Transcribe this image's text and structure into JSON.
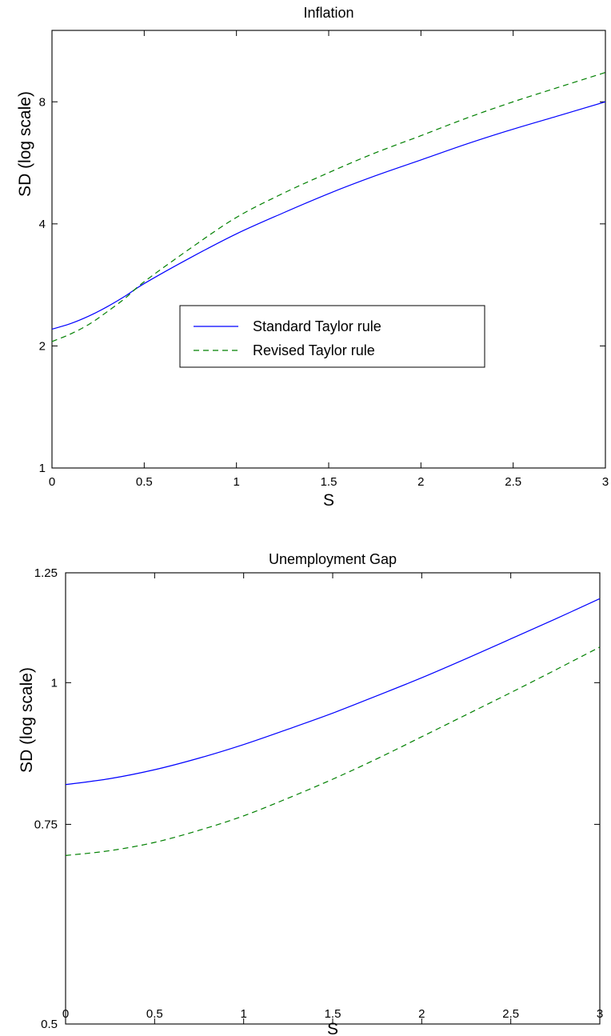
{
  "chart_data": [
    {
      "type": "line",
      "title": "Inflation",
      "xlabel": "S",
      "ylabel": "SD (log scale)",
      "y_scale": "log2",
      "xlim": [
        0,
        3
      ],
      "ylim": [
        1,
        12
      ],
      "x_ticks": [
        "0",
        "0.5",
        "1",
        "1.5",
        "2",
        "2.5",
        "3"
      ],
      "y_ticks": [
        "1",
        "2",
        "4",
        "8"
      ],
      "grid": false,
      "legend": {
        "position": "center",
        "entries": [
          "Standard Taylor rule",
          "Revised Taylor rule"
        ]
      },
      "x": [
        0,
        0.1,
        0.2,
        0.3,
        0.4,
        0.5,
        0.75,
        1.0,
        1.25,
        1.5,
        1.75,
        2.0,
        2.25,
        2.5,
        2.75,
        3.0
      ],
      "series": [
        {
          "name": "Standard Taylor rule",
          "color": "#0000ff",
          "dash": "solid",
          "values": [
            2.2,
            2.27,
            2.37,
            2.5,
            2.66,
            2.85,
            3.3,
            3.78,
            4.25,
            4.75,
            5.25,
            5.75,
            6.3,
            6.85,
            7.4,
            8.0
          ]
        },
        {
          "name": "Revised Taylor rule",
          "color": "#008000",
          "dash": "dashed",
          "values": [
            2.05,
            2.14,
            2.26,
            2.43,
            2.63,
            2.88,
            3.48,
            4.15,
            4.75,
            5.35,
            5.98,
            6.6,
            7.3,
            8.0,
            8.7,
            9.45
          ]
        }
      ]
    },
    {
      "type": "line",
      "title": "Unemployment Gap",
      "xlabel": "S",
      "ylabel": "SD (log scale)",
      "y_scale": "log",
      "xlim": [
        0,
        3
      ],
      "ylim": [
        0.5,
        1.25
      ],
      "x_ticks": [
        "0",
        "0.5",
        "1",
        "1.5",
        "2",
        "2.5",
        "3"
      ],
      "y_ticks": [
        "0.5",
        "0.75",
        "1",
        "1.25"
      ],
      "grid": false,
      "x": [
        0,
        0.25,
        0.5,
        0.75,
        1.0,
        1.25,
        1.5,
        1.75,
        2.0,
        2.25,
        2.5,
        2.75,
        3.0
      ],
      "series": [
        {
          "name": "Standard Taylor rule",
          "color": "#0000ff",
          "dash": "solid",
          "values": [
            0.813,
            0.823,
            0.838,
            0.858,
            0.882,
            0.91,
            0.94,
            0.974,
            1.01,
            1.05,
            1.093,
            1.138,
            1.186
          ]
        },
        {
          "name": "Revised Taylor rule",
          "color": "#008000",
          "dash": "dashed",
          "values": [
            0.704,
            0.711,
            0.723,
            0.741,
            0.763,
            0.791,
            0.822,
            0.857,
            0.896,
            0.937,
            0.98,
            1.026,
            1.075
          ]
        }
      ]
    }
  ]
}
